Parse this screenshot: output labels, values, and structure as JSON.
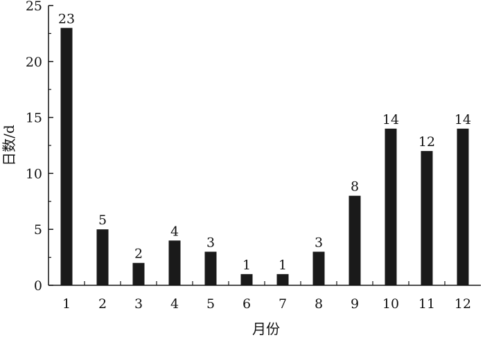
{
  "chart_data": {
    "type": "bar",
    "categories": [
      "1",
      "2",
      "3",
      "4",
      "5",
      "6",
      "7",
      "8",
      "9",
      "10",
      "11",
      "12"
    ],
    "values": [
      23,
      5,
      2,
      4,
      3,
      1,
      1,
      3,
      8,
      14,
      12,
      14
    ],
    "data_labels": [
      "23",
      "5",
      "2",
      "4",
      "3",
      "1",
      "1",
      "3",
      "8",
      "14",
      "12",
      "14"
    ],
    "xlabel": "月份",
    "ylabel": "日数/d",
    "ylim": [
      0,
      25
    ],
    "yticks": [
      0,
      5,
      10,
      15,
      20,
      25
    ],
    "ytick_labels": [
      "0",
      "5",
      "10",
      "15",
      "20",
      "25"
    ],
    "grid": false,
    "legend": "none",
    "bar_color": "#1a1a1a"
  }
}
